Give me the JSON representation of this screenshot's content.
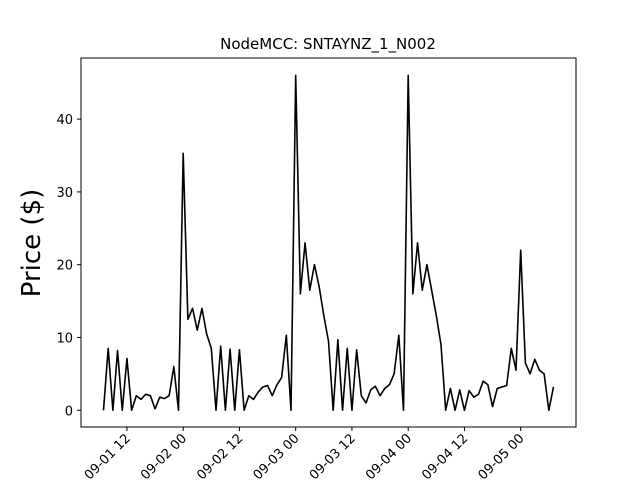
{
  "chart_data": {
    "type": "line",
    "title": "NodeMCC: SNTAYNZ_1_N002",
    "y_label": "Price ($)",
    "color": "#000000",
    "x": [
      "09-01 07",
      "09-01 08",
      "09-01 09",
      "09-01 10",
      "09-01 11",
      "09-01 12",
      "09-01 13",
      "09-01 14",
      "09-01 15",
      "09-01 16",
      "09-01 17",
      "09-01 18",
      "09-01 19",
      "09-01 20",
      "09-01 21",
      "09-01 22",
      "09-01 23",
      "09-02 00",
      "09-02 01",
      "09-02 02",
      "09-02 03",
      "09-02 04",
      "09-02 05",
      "09-02 06",
      "09-02 07",
      "09-02 08",
      "09-02 09",
      "09-02 10",
      "09-02 11",
      "09-02 12",
      "09-02 13",
      "09-02 14",
      "09-02 15",
      "09-02 16",
      "09-02 17",
      "09-02 18",
      "09-02 19",
      "09-02 20",
      "09-02 21",
      "09-02 22",
      "09-02 23",
      "09-03 00",
      "09-03 01",
      "09-03 02",
      "09-03 03",
      "09-03 04",
      "09-03 05",
      "09-03 06",
      "09-03 07",
      "09-03 08",
      "09-03 09",
      "09-03 10",
      "09-03 11",
      "09-03 12",
      "09-03 13",
      "09-03 14",
      "09-03 15",
      "09-03 16",
      "09-03 17",
      "09-03 18",
      "09-03 19",
      "09-03 20",
      "09-03 21",
      "09-03 22",
      "09-03 23",
      "09-04 00",
      "09-04 01",
      "09-04 02",
      "09-04 03",
      "09-04 04",
      "09-04 05",
      "09-04 06",
      "09-04 07",
      "09-04 08",
      "09-04 09",
      "09-04 10",
      "09-04 11",
      "09-04 12",
      "09-04 13",
      "09-04 14",
      "09-04 15",
      "09-04 16",
      "09-04 17",
      "09-04 18",
      "09-04 19",
      "09-04 20",
      "09-04 21",
      "09-04 22",
      "09-04 23",
      "09-05 00",
      "09-05 01",
      "09-05 02",
      "09-05 03",
      "09-05 04",
      "09-05 05",
      "09-05 06",
      "09-05 07"
    ],
    "values": [
      0,
      8.5,
      0,
      8.2,
      0,
      7.1,
      0,
      2.0,
      1.5,
      2.2,
      2.0,
      0.2,
      1.8,
      1.6,
      2.0,
      6.0,
      0,
      35.3,
      12.5,
      14.0,
      11.0,
      14.0,
      10.5,
      8.5,
      0,
      8.8,
      0,
      8.4,
      0,
      8.3,
      0,
      2.0,
      1.5,
      2.5,
      3.2,
      3.4,
      2.0,
      3.5,
      4.5,
      10.3,
      0,
      46.0,
      16.0,
      23.0,
      16.5,
      20.0,
      17.0,
      13.0,
      9.5,
      0,
      9.7,
      0,
      8.5,
      0,
      8.3,
      2.0,
      1.0,
      2.8,
      3.3,
      2.0,
      3.0,
      3.5,
      5.0,
      10.3,
      0,
      46.0,
      16.0,
      23.0,
      16.5,
      20.0,
      16.5,
      13.0,
      9.0,
      0,
      3.0,
      0,
      2.8,
      0,
      2.7,
      1.8,
      2.2,
      4.0,
      3.5,
      0.5,
      3.0,
      3.2,
      3.4,
      8.5,
      5.5,
      22.0,
      6.5,
      5.0,
      7.0,
      5.5,
      5.0,
      0,
      3.2
    ],
    "xticks": [
      "09-01 12",
      "09-02 00",
      "09-02 12",
      "09-03 00",
      "09-03 12",
      "09-04 00",
      "09-04 12",
      "09-05 00"
    ],
    "ylim": [
      -2.3,
      48.4
    ],
    "yticks": [
      0,
      10,
      20,
      30,
      40
    ]
  }
}
